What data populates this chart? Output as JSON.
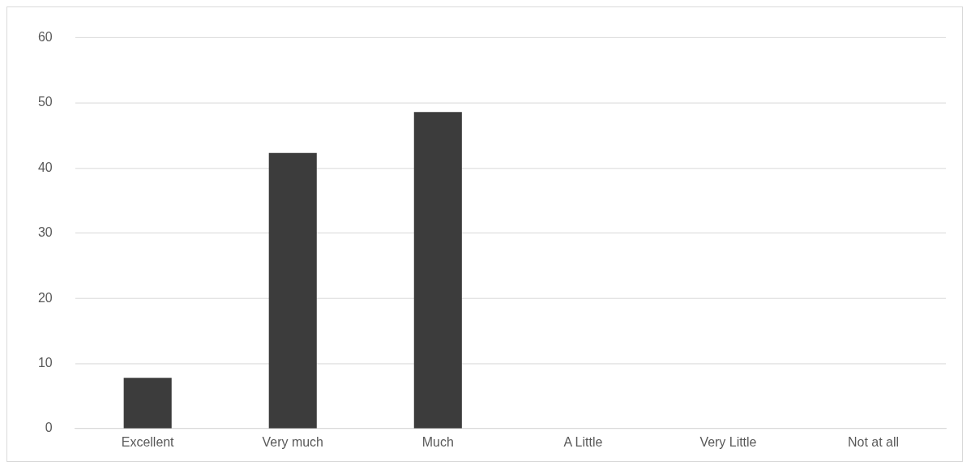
{
  "chart_data": {
    "type": "bar",
    "categories": [
      "Excellent",
      "Very much",
      "Much",
      "A Little",
      "Very Little",
      "Not at all"
    ],
    "values": [
      7.8,
      42.3,
      48.6,
      0,
      0,
      0
    ],
    "color": "#3c3c3c",
    "ylim": [
      0,
      60
    ],
    "yticks": [
      0,
      10,
      20,
      30,
      40,
      50,
      60
    ],
    "grid": "y",
    "legend": false
  }
}
